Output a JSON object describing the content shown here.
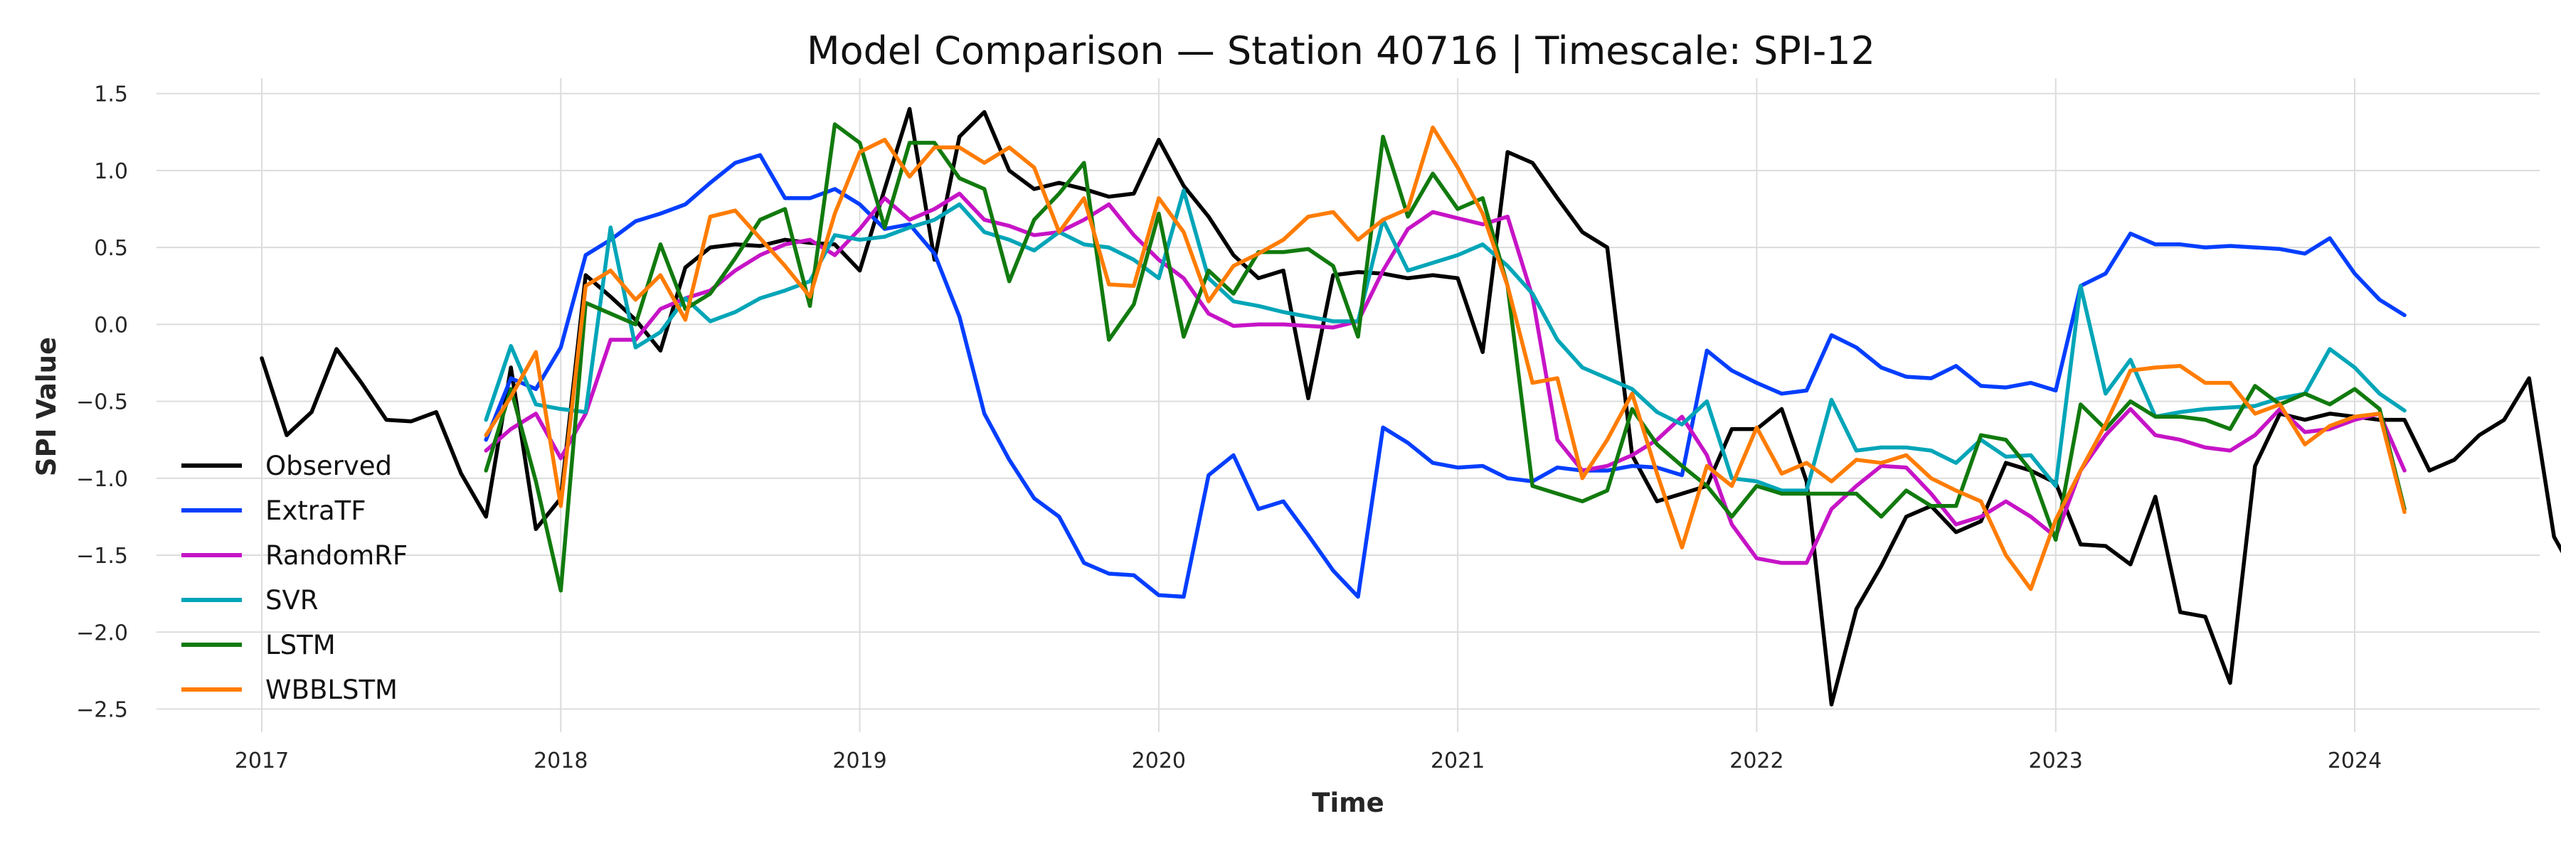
{
  "chart_data": {
    "type": "line",
    "title": "Model Comparison — Station 40716 | Timescale: SPI-12",
    "xlabel": "Time",
    "ylabel": "SPI Value",
    "xlim": [
      "2016-09",
      "2024-10"
    ],
    "ylim": [
      -2.65,
      1.6
    ],
    "x_ticks": [
      "2017",
      "2018",
      "2019",
      "2020",
      "2021",
      "2022",
      "2023",
      "2024"
    ],
    "y_ticks": [
      "1.5",
      "1.0",
      "0.5",
      "0.0",
      "−0.5",
      "−1.0",
      "−1.5",
      "−2.0",
      "−2.5"
    ],
    "y_tick_values": [
      1.5,
      1.0,
      0.5,
      0.0,
      -0.5,
      -1.0,
      -1.5,
      -2.0,
      -2.5
    ],
    "grid": true,
    "legend_position": "left",
    "series": [
      {
        "name": "Observed",
        "color": "#000000",
        "start": "2017-01",
        "values": [
          -0.22,
          -0.72,
          -0.57,
          -0.16,
          -0.38,
          -0.62,
          -0.63,
          -0.57,
          -0.97,
          -1.25,
          -0.28,
          -1.33,
          -1.13,
          0.32,
          0.18,
          0.03,
          -0.17,
          0.37,
          0.5,
          0.52,
          0.51,
          0.55,
          0.53,
          0.52,
          0.35,
          0.88,
          1.4,
          0.42,
          1.22,
          1.38,
          1.0,
          0.88,
          0.92,
          0.88,
          0.83,
          0.85,
          1.2,
          0.9,
          0.7,
          0.45,
          0.3,
          0.35,
          -0.48,
          0.32,
          0.34,
          0.33,
          0.3,
          0.32,
          0.3,
          -0.18,
          1.12,
          1.05,
          0.82,
          0.6,
          0.5,
          -0.85,
          -1.15,
          -1.1,
          -1.05,
          -0.68,
          -0.68,
          -0.55,
          -1.02,
          -2.47,
          -1.85,
          -1.57,
          -1.25,
          -1.18,
          -1.35,
          -1.28,
          -0.9,
          -0.95,
          -1.03,
          -1.43,
          -1.44,
          -1.56,
          -1.12,
          -1.87,
          -1.9,
          -2.33,
          -0.92,
          -0.58,
          -0.62,
          -0.58,
          -0.6,
          -0.62,
          -0.62,
          -0.95,
          -0.88,
          -0.72,
          -0.62,
          -0.35,
          -1.38,
          -1.67
        ]
      },
      {
        "name": "ExtraTF",
        "color": "#023EFF",
        "start": "2017-10",
        "values": [
          -0.75,
          -0.35,
          -0.42,
          -0.15,
          0.45,
          0.55,
          0.67,
          0.72,
          0.78,
          0.92,
          1.05,
          1.1,
          0.82,
          0.82,
          0.88,
          0.78,
          0.62,
          0.65,
          0.46,
          0.05,
          -0.58,
          -0.88,
          -1.13,
          -1.25,
          -1.55,
          -1.62,
          -1.63,
          -1.76,
          -1.77,
          -0.98,
          -0.85,
          -1.2,
          -1.15,
          -1.37,
          -1.6,
          -1.77,
          -0.67,
          -0.77,
          -0.9,
          -0.93,
          -0.92,
          -1.0,
          -1.02,
          -0.93,
          -0.95,
          -0.95,
          -0.92,
          -0.93,
          -0.98,
          -0.17,
          -0.3,
          -0.38,
          -0.45,
          -0.43,
          -0.07,
          -0.15,
          -0.28,
          -0.34,
          -0.35,
          -0.27,
          -0.4,
          -0.41,
          -0.38,
          -0.43,
          0.25,
          0.33,
          0.59,
          0.52,
          0.52,
          0.5,
          0.51,
          0.5,
          0.49,
          0.46,
          0.56,
          0.33,
          0.16,
          0.06
        ]
      },
      {
        "name": "RandomRF",
        "color": "#C614C6",
        "start": "2017-10",
        "values": [
          -0.82,
          -0.68,
          -0.58,
          -0.87,
          -0.58,
          -0.1,
          -0.1,
          0.1,
          0.17,
          0.22,
          0.35,
          0.45,
          0.52,
          0.55,
          0.45,
          0.62,
          0.82,
          0.68,
          0.75,
          0.85,
          0.68,
          0.64,
          0.58,
          0.6,
          0.68,
          0.78,
          0.58,
          0.42,
          0.3,
          0.07,
          -0.01,
          0.0,
          0.0,
          -0.01,
          -0.02,
          0.02,
          0.35,
          0.62,
          0.73,
          0.69,
          0.65,
          0.7,
          0.18,
          -0.75,
          -0.95,
          -0.92,
          -0.85,
          -0.75,
          -0.6,
          -0.85,
          -1.3,
          -1.52,
          -1.55,
          -1.55,
          -1.2,
          -1.05,
          -0.92,
          -0.93,
          -1.1,
          -1.3,
          -1.25,
          -1.15,
          -1.25,
          -1.38,
          -0.95,
          -0.72,
          -0.55,
          -0.72,
          -0.75,
          -0.8,
          -0.82,
          -0.72,
          -0.55,
          -0.7,
          -0.68,
          -0.62,
          -0.58,
          -0.95
        ]
      },
      {
        "name": "SVR",
        "color": "#00A5B8",
        "start": "2017-10",
        "values": [
          -0.62,
          -0.14,
          -0.52,
          -0.55,
          -0.57,
          0.63,
          -0.15,
          -0.05,
          0.17,
          0.02,
          0.08,
          0.17,
          0.22,
          0.28,
          0.58,
          0.55,
          0.57,
          0.63,
          0.68,
          0.78,
          0.6,
          0.55,
          0.48,
          0.6,
          0.52,
          0.5,
          0.42,
          0.3,
          0.87,
          0.3,
          0.15,
          0.12,
          0.08,
          0.05,
          0.02,
          0.02,
          0.68,
          0.35,
          0.4,
          0.45,
          0.52,
          0.38,
          0.2,
          -0.1,
          -0.28,
          -0.35,
          -0.42,
          -0.57,
          -0.65,
          -0.5,
          -1.0,
          -1.02,
          -1.08,
          -1.08,
          -0.49,
          -0.82,
          -0.8,
          -0.8,
          -0.82,
          -0.9,
          -0.75,
          -0.86,
          -0.85,
          -1.05,
          0.25,
          -0.45,
          -0.23,
          -0.6,
          -0.57,
          -0.55,
          -0.54,
          -0.53,
          -0.48,
          -0.45,
          -0.16,
          -0.28,
          -0.45,
          -0.56
        ]
      },
      {
        "name": "LSTM",
        "color": "#117A0E",
        "start": "2017-10",
        "values": [
          -0.95,
          -0.42,
          -1.02,
          -1.73,
          0.14,
          0.07,
          0.0,
          0.52,
          0.1,
          0.2,
          0.43,
          0.68,
          0.75,
          0.12,
          1.3,
          1.18,
          0.63,
          1.18,
          1.18,
          0.95,
          0.88,
          0.28,
          0.68,
          0.85,
          1.05,
          -0.1,
          0.13,
          0.72,
          -0.08,
          0.35,
          0.2,
          0.47,
          0.47,
          0.49,
          0.38,
          -0.08,
          1.22,
          0.7,
          0.98,
          0.75,
          0.82,
          0.25,
          -1.05,
          -1.1,
          -1.15,
          -1.08,
          -0.55,
          -0.78,
          -0.92,
          -1.05,
          -1.25,
          -1.05,
          -1.1,
          -1.1,
          -1.1,
          -1.1,
          -1.25,
          -1.08,
          -1.18,
          -1.18,
          -0.72,
          -0.75,
          -0.95,
          -1.4,
          -0.52,
          -0.68,
          -0.5,
          -0.6,
          -0.6,
          -0.62,
          -0.68,
          -0.4,
          -0.52,
          -0.45,
          -0.52,
          -0.42,
          -0.55,
          -1.2
        ]
      },
      {
        "name": "WBBLSTM",
        "color": "#FF7C00",
        "start": "2017-10",
        "values": [
          -0.72,
          -0.47,
          -0.18,
          -1.18,
          0.25,
          0.35,
          0.16,
          0.32,
          0.03,
          0.7,
          0.74,
          0.56,
          0.38,
          0.18,
          0.72,
          1.12,
          1.2,
          0.96,
          1.15,
          1.15,
          1.05,
          1.15,
          1.02,
          0.6,
          0.82,
          0.26,
          0.25,
          0.82,
          0.6,
          0.15,
          0.38,
          0.46,
          0.55,
          0.7,
          0.73,
          0.55,
          0.68,
          0.75,
          1.28,
          1.02,
          0.72,
          0.25,
          -0.38,
          -0.35,
          -1.0,
          -0.75,
          -0.45,
          -0.97,
          -1.45,
          -0.92,
          -1.05,
          -0.67,
          -0.97,
          -0.9,
          -1.02,
          -0.88,
          -0.9,
          -0.85,
          -1.0,
          -1.08,
          -1.15,
          -1.5,
          -1.72,
          -1.27,
          -0.95,
          -0.65,
          -0.3,
          -0.28,
          -0.27,
          -0.38,
          -0.38,
          -0.58,
          -0.52,
          -0.78,
          -0.66,
          -0.6,
          -0.58,
          -1.22
        ]
      }
    ]
  }
}
